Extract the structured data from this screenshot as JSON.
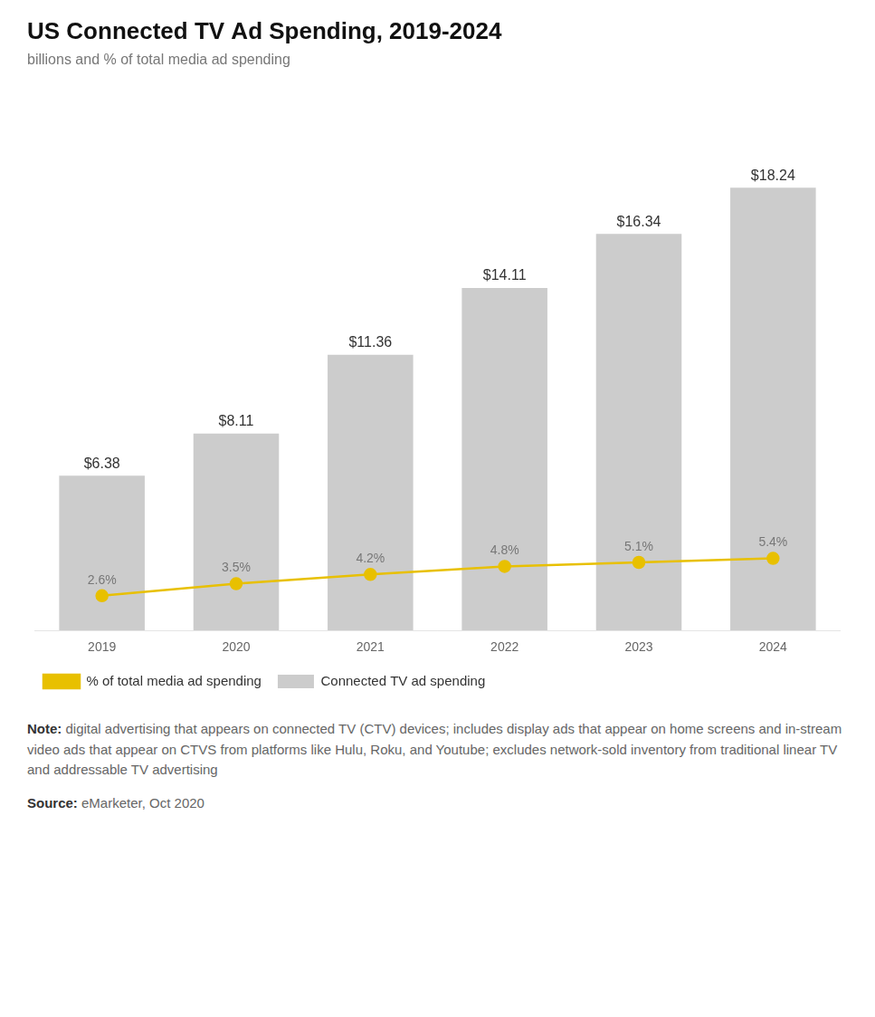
{
  "chart_data": {
    "type": "bar",
    "title": "US Connected TV Ad Spending, 2019-2024",
    "subtitle": "billions and % of total media ad spending",
    "categories": [
      "2019",
      "2020",
      "2021",
      "2022",
      "2023",
      "2024"
    ],
    "series": [
      {
        "name": "Connected TV ad spending",
        "type": "bar",
        "color": "#cccccc",
        "values": [
          6.38,
          8.11,
          11.36,
          14.11,
          16.34,
          18.24
        ],
        "value_labels": [
          "$6.38",
          "$8.11",
          "$11.36",
          "$14.11",
          "$16.34",
          "$18.24"
        ]
      },
      {
        "name": "% of total media ad spending",
        "type": "line",
        "color": "#e8c000",
        "axis": "y2",
        "marker": "circle",
        "line_style": "solid",
        "values": [
          2.6,
          3.5,
          4.2,
          4.8,
          5.1,
          5.4
        ],
        "value_labels": [
          "2.6%",
          "3.5%",
          "4.2%",
          "4.8%",
          "5.1%",
          "5.4%"
        ]
      }
    ],
    "ylim": [
      0,
      22
    ],
    "y2lim": [
      0,
      40
    ],
    "data_labels": true,
    "tick_labels": "x",
    "grid": false,
    "legend": "bottom",
    "note": "Note: digital advertising that appears on connected TV (CTV) devices; includes display ads that appear on home screens and in-stream video ads that appear on CTVS from platforms like Hulu, Roku, and Youtube; excludes network-sold inventory from traditional linear TV and addressable TV advertising",
    "source": "Source: eMarketer, Oct 2020"
  }
}
